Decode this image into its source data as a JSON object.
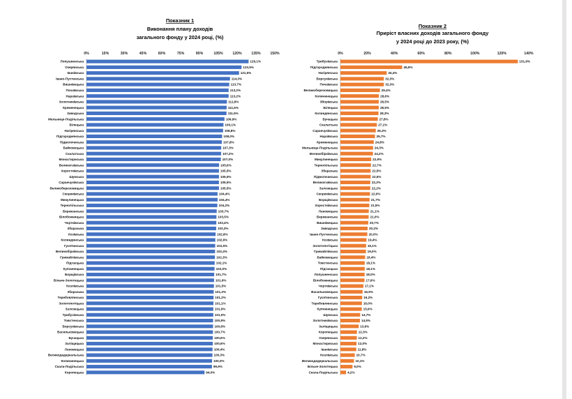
{
  "chart_data": [
    {
      "type": "bar",
      "orientation": "horizontal",
      "title": "Показник 1",
      "subtitle_lines": [
        "Виконання плану доходів",
        "загального фонду у 2024 році, (%)"
      ],
      "xlim": [
        0,
        150
      ],
      "ticks": [
        "0%",
        "15%",
        "30%",
        "45%",
        "60%",
        "75%",
        "90%",
        "105%",
        "120%",
        "135%",
        "150%"
      ],
      "tick_values": [
        0,
        15,
        30,
        45,
        60,
        75,
        90,
        105,
        120,
        135,
        150
      ],
      "bar_color": "#4472c4",
      "grid": false,
      "categories": [
        "Лопушненська",
        "Озерянська",
        "Іванівська",
        "Івано-Пустенська",
        "Вишнівецька",
        "Почаївська",
        "Нараївська",
        "Золотниківська",
        "Кременецька",
        "Заводська",
        "Мельнице-Подільська",
        "Білецька",
        "Нагірянська",
        "Підгороднянська",
        "Підволочиська",
        "Байковецька",
        "Скалатська",
        "Монастириська",
        "Великогаївська",
        "Хоростківська",
        "Шумська",
        "Саранчуківська",
        "Великоберезовицька",
        "Скориківська",
        "Микулинецька",
        "Тернопільська",
        "Бережанська",
        "Білобожницька",
        "Чортківська",
        "Збаразька",
        "Козівська",
        "Колиндянська",
        "Гусятинська",
        "Великобірківська",
        "Гримайлівська",
        "Підгаєцька",
        "Купчинецька",
        "Борщівська",
        "Більче-Золотецька",
        "Козлівська",
        "Збаразька",
        "Теребовлянська",
        "Золотопотіцька",
        "Залозецька",
        "Трибухівська",
        "Товстенська",
        "Борсуківська",
        "Васильковецька",
        "Бучацька",
        "Заліщицька",
        "Лановецька",
        "Великодедеркальська",
        "Копичинецька",
        "Скала-Подільська",
        "Коропецька"
      ],
      "values": [
        129.1,
        123.5,
        121.5,
        114.3,
        113.7,
        113.2,
        113.2,
        111.8,
        111.6,
        111.5,
        109.9,
        109.1,
        108.8,
        108.0,
        107.8,
        107.3,
        107.2,
        107.0,
        105.6,
        105.5,
        105.5,
        105.5,
        105.5,
        104.4,
        104.4,
        104.2,
        103.7,
        103.5,
        103.4,
        103.3,
        102.8,
        102.6,
        102.5,
        102.4,
        102.3,
        102.1,
        102.0,
        101.7,
        101.6,
        101.5,
        101.3,
        101.2,
        101.1,
        101.0,
        101.0,
        100.8,
        100.8,
        100.7,
        100.6,
        100.6,
        100.4,
        100.3,
        100.0,
        99.9,
        94.0
      ],
      "labels": [
        "129,1%",
        "123,5%",
        "121,5%",
        "114,3%",
        "113,7%",
        "113,2%",
        "113,2%",
        "111,8%",
        "111,6%",
        "111,5%",
        "109,9%",
        "109,1%",
        "108,8%",
        "108,0%",
        "107,8%",
        "107,3%",
        "107,2%",
        "107,0%",
        "105,6%",
        "105,5%",
        "105,5%",
        "105,5%",
        "105,5%",
        "104,4%",
        "104,4%",
        "104,2%",
        "103,7%",
        "103,5%",
        "103,4%",
        "103,3%",
        "102,8%",
        "102,6%",
        "102,5%",
        "102,4%",
        "102,3%",
        "102,1%",
        "102,0%",
        "101,7%",
        "101,6%",
        "101,5%",
        "101,3%",
        "101,2%",
        "101,1%",
        "101,0%",
        "101,0%",
        "100,8%",
        "100,8%",
        "100,7%",
        "100,6%",
        "100,6%",
        "100,4%",
        "100,3%",
        "100,0%",
        "99,9%",
        "94,0%"
      ]
    },
    {
      "type": "bar",
      "orientation": "horizontal",
      "title": "Показник 2",
      "subtitle_lines": [
        "Приріст власних доходів загального фонду",
        "у 2024 році до 2023 року, (%)"
      ],
      "xlim": [
        0,
        140
      ],
      "ticks": [
        "0%",
        "20%",
        "40%",
        "60%",
        "80%",
        "100%",
        "120%",
        "140%"
      ],
      "tick_values": [
        0,
        20,
        40,
        60,
        80,
        100,
        120,
        140
      ],
      "bar_color": "#ed7d31",
      "grid": false,
      "categories": [
        "Трибухівська",
        "Підгороднянська",
        "Нагірянська",
        "Борсуківська",
        "Почаївська",
        "Великоберезовицька",
        "Копичинецька",
        "Зборівська",
        "Білецька",
        "Колиндянська",
        "Бучацька",
        "Скалатська",
        "Саранчуківська",
        "Нараївська",
        "Кременецька",
        "Мельнице-Подільська",
        "Великобірківська",
        "Микулинецька",
        "Тернопільська",
        "Збаразька",
        "Підволочиська",
        "Великогаївська",
        "Залозецька",
        "Скориківська",
        "Борщівська",
        "Хоростківська",
        "Лановецька",
        "Бережанська",
        "Вишнівецька",
        "Заводська",
        "Івано-Пустенська",
        "Козівська",
        "Золотопотіцька",
        "Гримайлівська",
        "Байковецька",
        "Товстенська",
        "Підгаєцька",
        "Лопушненська",
        "Білобожницька",
        "Чортківська",
        "Васильковецька",
        "Гусятинська",
        "Теребовлянська",
        "Купчинецька",
        "Шумська",
        "Золотниківська",
        "Заліщицька",
        "Коропецька",
        "Озерянська",
        "Монастириська",
        "Іванівська",
        "Козлівська",
        "Великодедеркальська",
        "Більче-Золотецька",
        "Скала-Подільська"
      ],
      "values": [
        131.9,
        45.9,
        34.4,
        32.3,
        32.3,
        29.4,
        28.6,
        28.5,
        28.5,
        28.3,
        27.8,
        27.1,
        26.3,
        25.7,
        24.8,
        24.3,
        24.2,
        22.9,
        22.7,
        22.5,
        22.5,
        22.2,
        22.2,
        22.0,
        21.7,
        21.5,
        21.1,
        21.0,
        20.7,
        20.2,
        20.0,
        19.4,
        19.1,
        19.0,
        18.4,
        18.1,
        18.1,
        18.0,
        17.9,
        17.1,
        16.5,
        16.2,
        16.0,
        15.9,
        14.7,
        14.5,
        13.6,
        12.3,
        12.2,
        12.0,
        11.8,
        10.7,
        10.1,
        9.0,
        4.2
      ],
      "labels": [
        "131,9%",
        "45,9%",
        "34,4%",
        "32,3%",
        "32,3%",
        "29,4%",
        "28,6%",
        "28,5%",
        "28,5%",
        "28,3%",
        "27,8%",
        "27,1%",
        "26,3%",
        "25,7%",
        "24,8%",
        "24,3%",
        "24,2%",
        "22,9%",
        "22,7%",
        "22,5%",
        "22,5%",
        "22,2%",
        "22,2%",
        "22,0%",
        "21,7%",
        "21,5%",
        "21,1%",
        "21,0%",
        "20,7%",
        "20,2%",
        "20,0%",
        "19,4%",
        "19,1%",
        "19,0%",
        "18,4%",
        "18,1%",
        "18,1%",
        "18,0%",
        "17,9%",
        "17,1%",
        "16,5%",
        "16,2%",
        "16,0%",
        "15,9%",
        "14,7%",
        "14,5%",
        "13,6%",
        "12,3%",
        "12,2%",
        "12,0%",
        "11,8%",
        "10,7%",
        "10,1%",
        "9,0%",
        "4,2%"
      ]
    }
  ]
}
